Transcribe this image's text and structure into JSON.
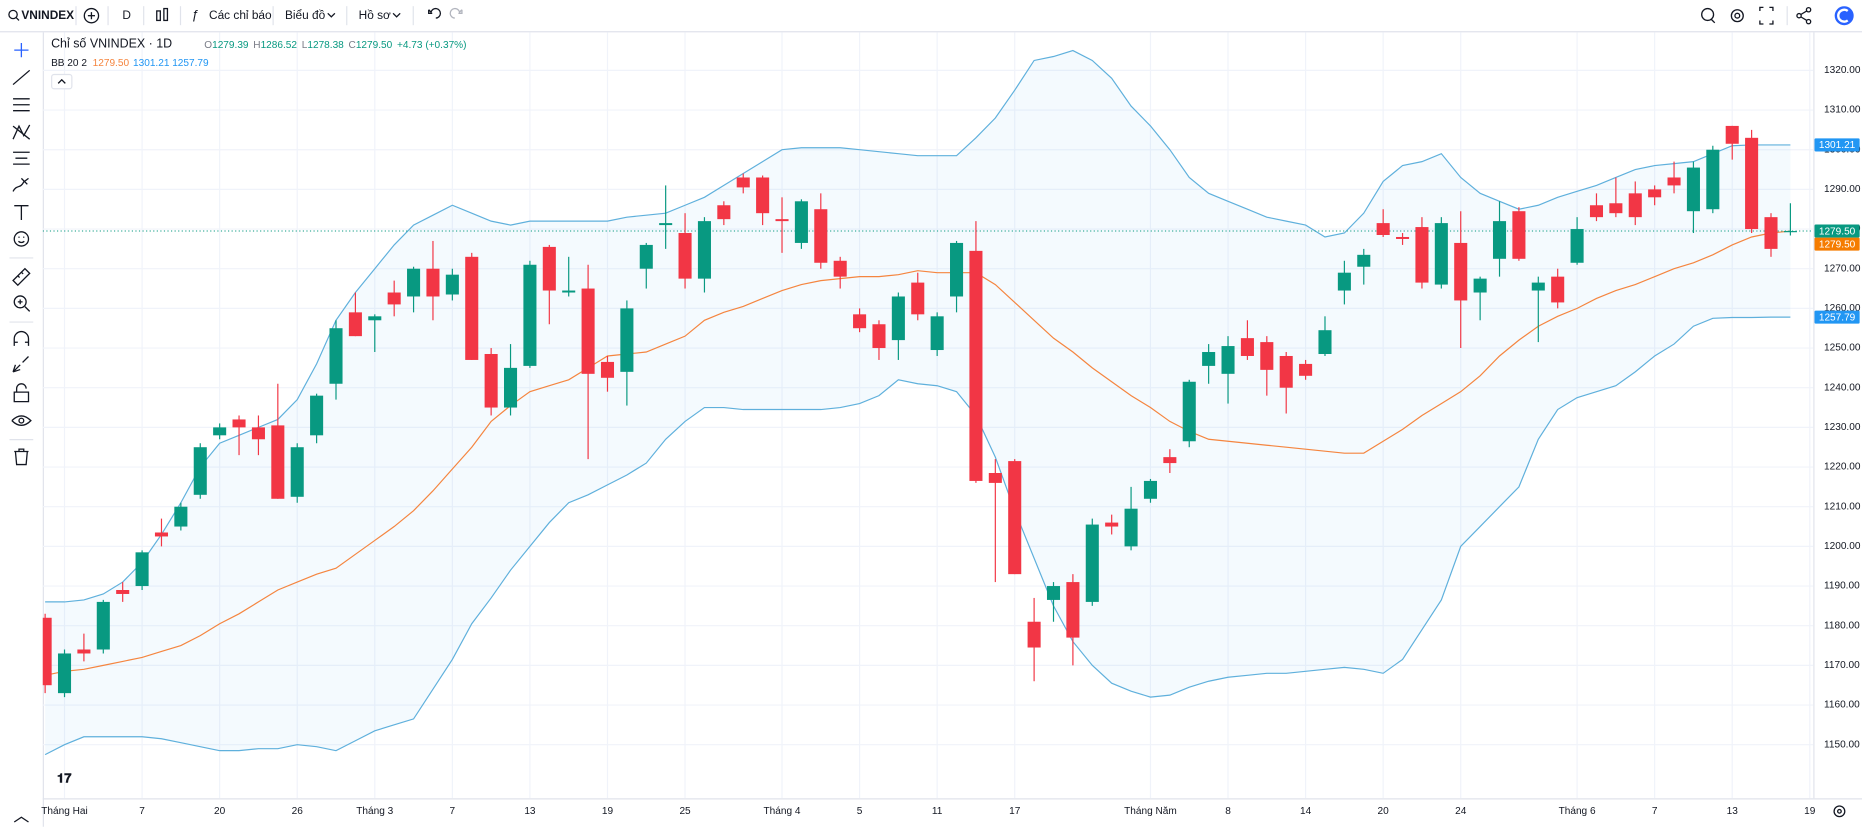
{
  "toolbar": {
    "symbol": "VNINDEX",
    "interval": "D",
    "indicators": "Các chỉ báo",
    "chart": "Biểu đồ",
    "profile": "Hồ sơ"
  },
  "legend": {
    "symbol": "Chỉ số VNINDEX · 1D",
    "ohlc": [
      {
        "key": "O",
        "value": "1279.39"
      },
      {
        "key": "H",
        "value": "1286.52"
      },
      {
        "key": "L",
        "value": "1278.38"
      },
      {
        "key": "C",
        "value": "1279.50"
      }
    ],
    "change": "+4.73 (+0.37%)",
    "indicator": "BB 20 2",
    "indicator_values": [
      "1279.50",
      "1301.21",
      "1257.79"
    ]
  },
  "chart_data": {
    "type": "candlestick",
    "categories": [
      null,
      "Tháng Hai",
      null,
      null,
      null,
      "7",
      null,
      null,
      null,
      "20",
      null,
      null,
      null,
      "26",
      null,
      null,
      null,
      "Tháng 3",
      null,
      null,
      null,
      "7",
      null,
      null,
      null,
      "13",
      null,
      null,
      null,
      "19",
      null,
      null,
      null,
      "25",
      null,
      null,
      null,
      null,
      "Tháng 4",
      null,
      null,
      null,
      "5",
      null,
      null,
      null,
      "11",
      null,
      null,
      null,
      "17",
      null,
      null,
      null,
      null,
      null,
      null,
      "Tháng Năm",
      null,
      null,
      null,
      "8",
      null,
      null,
      null,
      "14",
      null,
      null,
      null,
      "20",
      null,
      null,
      null,
      "24",
      null,
      null,
      null,
      null,
      null,
      "Tháng 6",
      null,
      null,
      null,
      "7",
      null,
      null,
      null,
      "13",
      null,
      null,
      null,
      "19"
    ],
    "open": [
      1182,
      1163,
      1174,
      1174,
      1189,
      1190,
      1203.5,
      1205,
      1213,
      1228,
      1232,
      1230,
      1230.5,
      1212.5,
      1228,
      1241,
      1259,
      1257,
      1264,
      1263,
      1270,
      1263.5,
      1273,
      1248.5,
      1235,
      1245.5,
      1275.5,
      1264,
      1265,
      1246.5,
      1244,
      1270,
      1281,
      1279,
      1267.5,
      1286,
      1293,
      1293,
      1282.5,
      1276.5,
      1285,
      1272,
      1258.5,
      1256,
      1252,
      1266.5,
      1249.5,
      1263,
      1274.5,
      1218.5,
      1221.5,
      1181,
      1186.5,
      1191,
      1186,
      1206,
      1200,
      1212,
      1222.5,
      1226.5,
      1245.5,
      1243.5,
      1252.5,
      1251.5,
      1248,
      1246,
      1248.5,
      1264.5,
      1270.5,
      1281.5,
      1278,
      1280.5,
      1266,
      1276.5,
      1264,
      1272.5,
      1284.5,
      1264.5,
      1268,
      1271.5,
      1286,
      1286.5,
      1289,
      1290,
      1293,
      1284.5,
      1285,
      1306,
      1303,
      1283,
      1279.39,
      null
    ],
    "high": [
      1183,
      1174,
      1178,
      1186.5,
      1191,
      1199,
      1207,
      1211,
      1226,
      1231,
      1233,
      1233,
      1241,
      1226,
      1238.5,
      1257,
      1264,
      1258.5,
      1267,
      1270.5,
      1277,
      1270,
      1274,
      1250,
      1251,
      1272,
      1276,
      1273,
      1271,
      1248,
      1262,
      1276.5,
      1291,
      1284,
      1283,
      1287,
      1294,
      1293.5,
      1288,
      1287.5,
      1289,
      1273,
      1260,
      1257,
      1264,
      1269,
      1259,
      1277,
      1282,
      1222,
      1222,
      1187,
      1191,
      1193,
      1207,
      1208,
      1215,
      1217,
      1224.5,
      1242,
      1251,
      1253,
      1257,
      1253,
      1249,
      1247,
      1258,
      1272,
      1275,
      1285,
      1279,
      1283,
      1283,
      1284.5,
      1268,
      1287,
      1285.5,
      1268,
      1270,
      1283,
      1289,
      1293,
      1292,
      1291,
      1297,
      1297,
      1301,
      1306,
      1305,
      1284,
      1286.52,
      null
    ],
    "low": [
      1163,
      1162,
      1171,
      1173,
      1186,
      1189,
      1200,
      1204,
      1212,
      1227,
      1223,
      1223,
      1212,
      1211,
      1226,
      1237,
      1253,
      1249,
      1258,
      1259,
      1257,
      1262,
      1247,
      1233,
      1233,
      1245,
      1256,
      1263,
      1222,
      1239,
      1235.5,
      1265,
      1275,
      1265,
      1264,
      1281,
      1289,
      1281,
      1274,
      1275,
      1270,
      1265,
      1254,
      1247,
      1247,
      1257,
      1248,
      1259,
      1216,
      1191,
      1193,
      1166,
      1181,
      1170,
      1185,
      1203,
      1199,
      1211,
      1218.5,
      1225,
      1241,
      1236,
      1247,
      1238,
      1233.5,
      1242,
      1248,
      1261,
      1266,
      1278,
      1276,
      1265,
      1265,
      1250,
      1257,
      1268,
      1272,
      1251.5,
      1260,
      1271,
      1282,
      1283,
      1281,
      1286,
      1289,
      1279,
      1284,
      1297.5,
      1279,
      1273,
      1278.38,
      null
    ],
    "close": [
      1165,
      1173,
      1173,
      1186,
      1188,
      1198.5,
      1202.5,
      1210,
      1225,
      1230,
      1230,
      1227,
      1212,
      1225,
      1238,
      1255,
      1253,
      1258,
      1261,
      1270,
      1263,
      1268.5,
      1247,
      1235,
      1245,
      1271,
      1264.5,
      1264.5,
      1243.5,
      1242.5,
      1260,
      1276,
      1281.5,
      1267.5,
      1282,
      1282.5,
      1290.5,
      1284,
      1282,
      1287,
      1271.5,
      1268,
      1255,
      1250,
      1263,
      1258.5,
      1258,
      1276.5,
      1216.5,
      1216,
      1193,
      1174.5,
      1190,
      1177,
      1205.5,
      1205,
      1209.5,
      1216.5,
      1221,
      1241.5,
      1249,
      1250.5,
      1248,
      1244.5,
      1240,
      1243,
      1254.5,
      1269,
      1273.5,
      1278.5,
      1277.5,
      1266.5,
      1281.5,
      1262,
      1267.5,
      1282,
      1272.5,
      1266.5,
      1261.5,
      1280,
      1283,
      1284,
      1283,
      1288,
      1291,
      1295.5,
      1300,
      1301.5,
      1280,
      1275,
      1279.5,
      null
    ],
    "up_color": "#089981",
    "down_color": "#f23645",
    "upper": {
      "color": "#5fb0dc",
      "values": [
        1186,
        1186,
        1186.5,
        1188,
        1191,
        1196,
        1203,
        1211,
        1220,
        1226,
        1228,
        1230,
        1232,
        1237,
        1246,
        1257,
        1264,
        1270,
        1276,
        1281,
        1283.5,
        1286,
        1284,
        1282,
        1281,
        1282,
        1282,
        1282,
        1282,
        1282,
        1283,
        1283.5,
        1284,
        1286,
        1288,
        1291,
        1294,
        1297,
        1300,
        1300.5,
        1300.5,
        1300.5,
        1300,
        1299.5,
        1299,
        1298.5,
        1298.5,
        1298.5,
        1303,
        1308,
        1315,
        1322.5,
        1323.5,
        1325,
        1322.5,
        1318,
        1311,
        1306,
        1300,
        1293,
        1289,
        1287,
        1285,
        1283,
        1282,
        1281,
        1278,
        1279,
        1284,
        1292,
        1296,
        1297,
        1299,
        1293,
        1289,
        1287,
        1285,
        1286,
        1288,
        1289.5,
        1291,
        1293,
        1295,
        1296,
        1296.5,
        1297,
        1299,
        1301,
        1301.2,
        1301.2,
        1301.21,
        null
      ]
    },
    "basis": {
      "color": "#f5853f",
      "values": [
        1167.5,
        1168.5,
        1169,
        1170,
        1171,
        1172,
        1173.5,
        1175,
        1177.5,
        1180.5,
        1183,
        1186,
        1189,
        1191,
        1193,
        1194.5,
        1198,
        1201.5,
        1205,
        1209,
        1214,
        1219.5,
        1225,
        1231.5,
        1235.5,
        1239,
        1240.5,
        1242,
        1245,
        1248,
        1248.5,
        1249,
        1251,
        1253,
        1257,
        1259,
        1260.5,
        1262.5,
        1264.5,
        1266,
        1267,
        1267.5,
        1268,
        1268,
        1268.5,
        1269.5,
        1269,
        1269,
        1269,
        1266,
        1261.5,
        1257,
        1252.5,
        1249,
        1245,
        1241.5,
        1238,
        1235,
        1231.5,
        1229,
        1227,
        1226.5,
        1226,
        1225.5,
        1225,
        1224.5,
        1224,
        1223.5,
        1223.5,
        1226.5,
        1229.5,
        1233,
        1236,
        1239,
        1243,
        1248,
        1252,
        1255.5,
        1258,
        1260,
        1262.5,
        1264.5,
        1266,
        1268,
        1270,
        1271.5,
        1273.5,
        1276,
        1278,
        1279,
        1279.5,
        null
      ]
    },
    "lower": {
      "color": "#5fb0dc",
      "values": [
        1147.5,
        1150,
        1152,
        1152,
        1152,
        1152,
        1151.5,
        1150.5,
        1149.5,
        1148.5,
        1148.5,
        1149,
        1149,
        1150,
        1149.5,
        1148.5,
        1151,
        1153.5,
        1155,
        1156.5,
        1164,
        1171.5,
        1180.5,
        1187,
        1194,
        1200,
        1206,
        1211,
        1213,
        1215.5,
        1218,
        1221,
        1227,
        1231.5,
        1235,
        1235,
        1234.5,
        1234.5,
        1234.5,
        1234.5,
        1234.5,
        1235,
        1236,
        1238,
        1242,
        1241,
        1240.5,
        1239,
        1233,
        1222.5,
        1209,
        1197,
        1185,
        1176,
        1170,
        1165.5,
        1163.5,
        1162,
        1162.5,
        1164.5,
        1166,
        1167,
        1167.5,
        1168,
        1168,
        1168.5,
        1169,
        1169.5,
        1169,
        1168,
        1171.5,
        1179,
        1186.5,
        1200,
        1205,
        1210,
        1215,
        1227,
        1234.5,
        1237.5,
        1239,
        1240.5,
        1244,
        1248,
        1251,
        1255.5,
        1257.5,
        1257.7,
        1257.7,
        1257.8,
        1257.79,
        null
      ]
    },
    "band_fill": "#2196f3",
    "ylim": [
      1136.5,
      1329.3
    ],
    "yticks": [
      {
        "value": 1150,
        "label": "1150.00"
      },
      {
        "value": 1160,
        "label": "1160.00"
      },
      {
        "value": 1170,
        "label": "1170.00"
      },
      {
        "value": 1180,
        "label": "1180.00"
      },
      {
        "value": 1190,
        "label": "1190.00"
      },
      {
        "value": 1200,
        "label": "1200.00"
      },
      {
        "value": 1210,
        "label": "1210.00"
      },
      {
        "value": 1220,
        "label": "1220.00"
      },
      {
        "value": 1230,
        "label": "1230.00"
      },
      {
        "value": 1240,
        "label": "1240.00"
      },
      {
        "value": 1250,
        "label": "1250.00"
      },
      {
        "value": 1260,
        "label": "1260.00"
      },
      {
        "value": 1270,
        "label": "1270.00"
      },
      {
        "value": 1280,
        "label": "1280.00"
      },
      {
        "value": 1290,
        "label": "1290.00"
      },
      {
        "value": 1300,
        "label": "1300.00"
      },
      {
        "value": 1310,
        "label": "1310.00"
      },
      {
        "value": 1320,
        "label": "1320.00"
      }
    ],
    "grid": true
  }
}
